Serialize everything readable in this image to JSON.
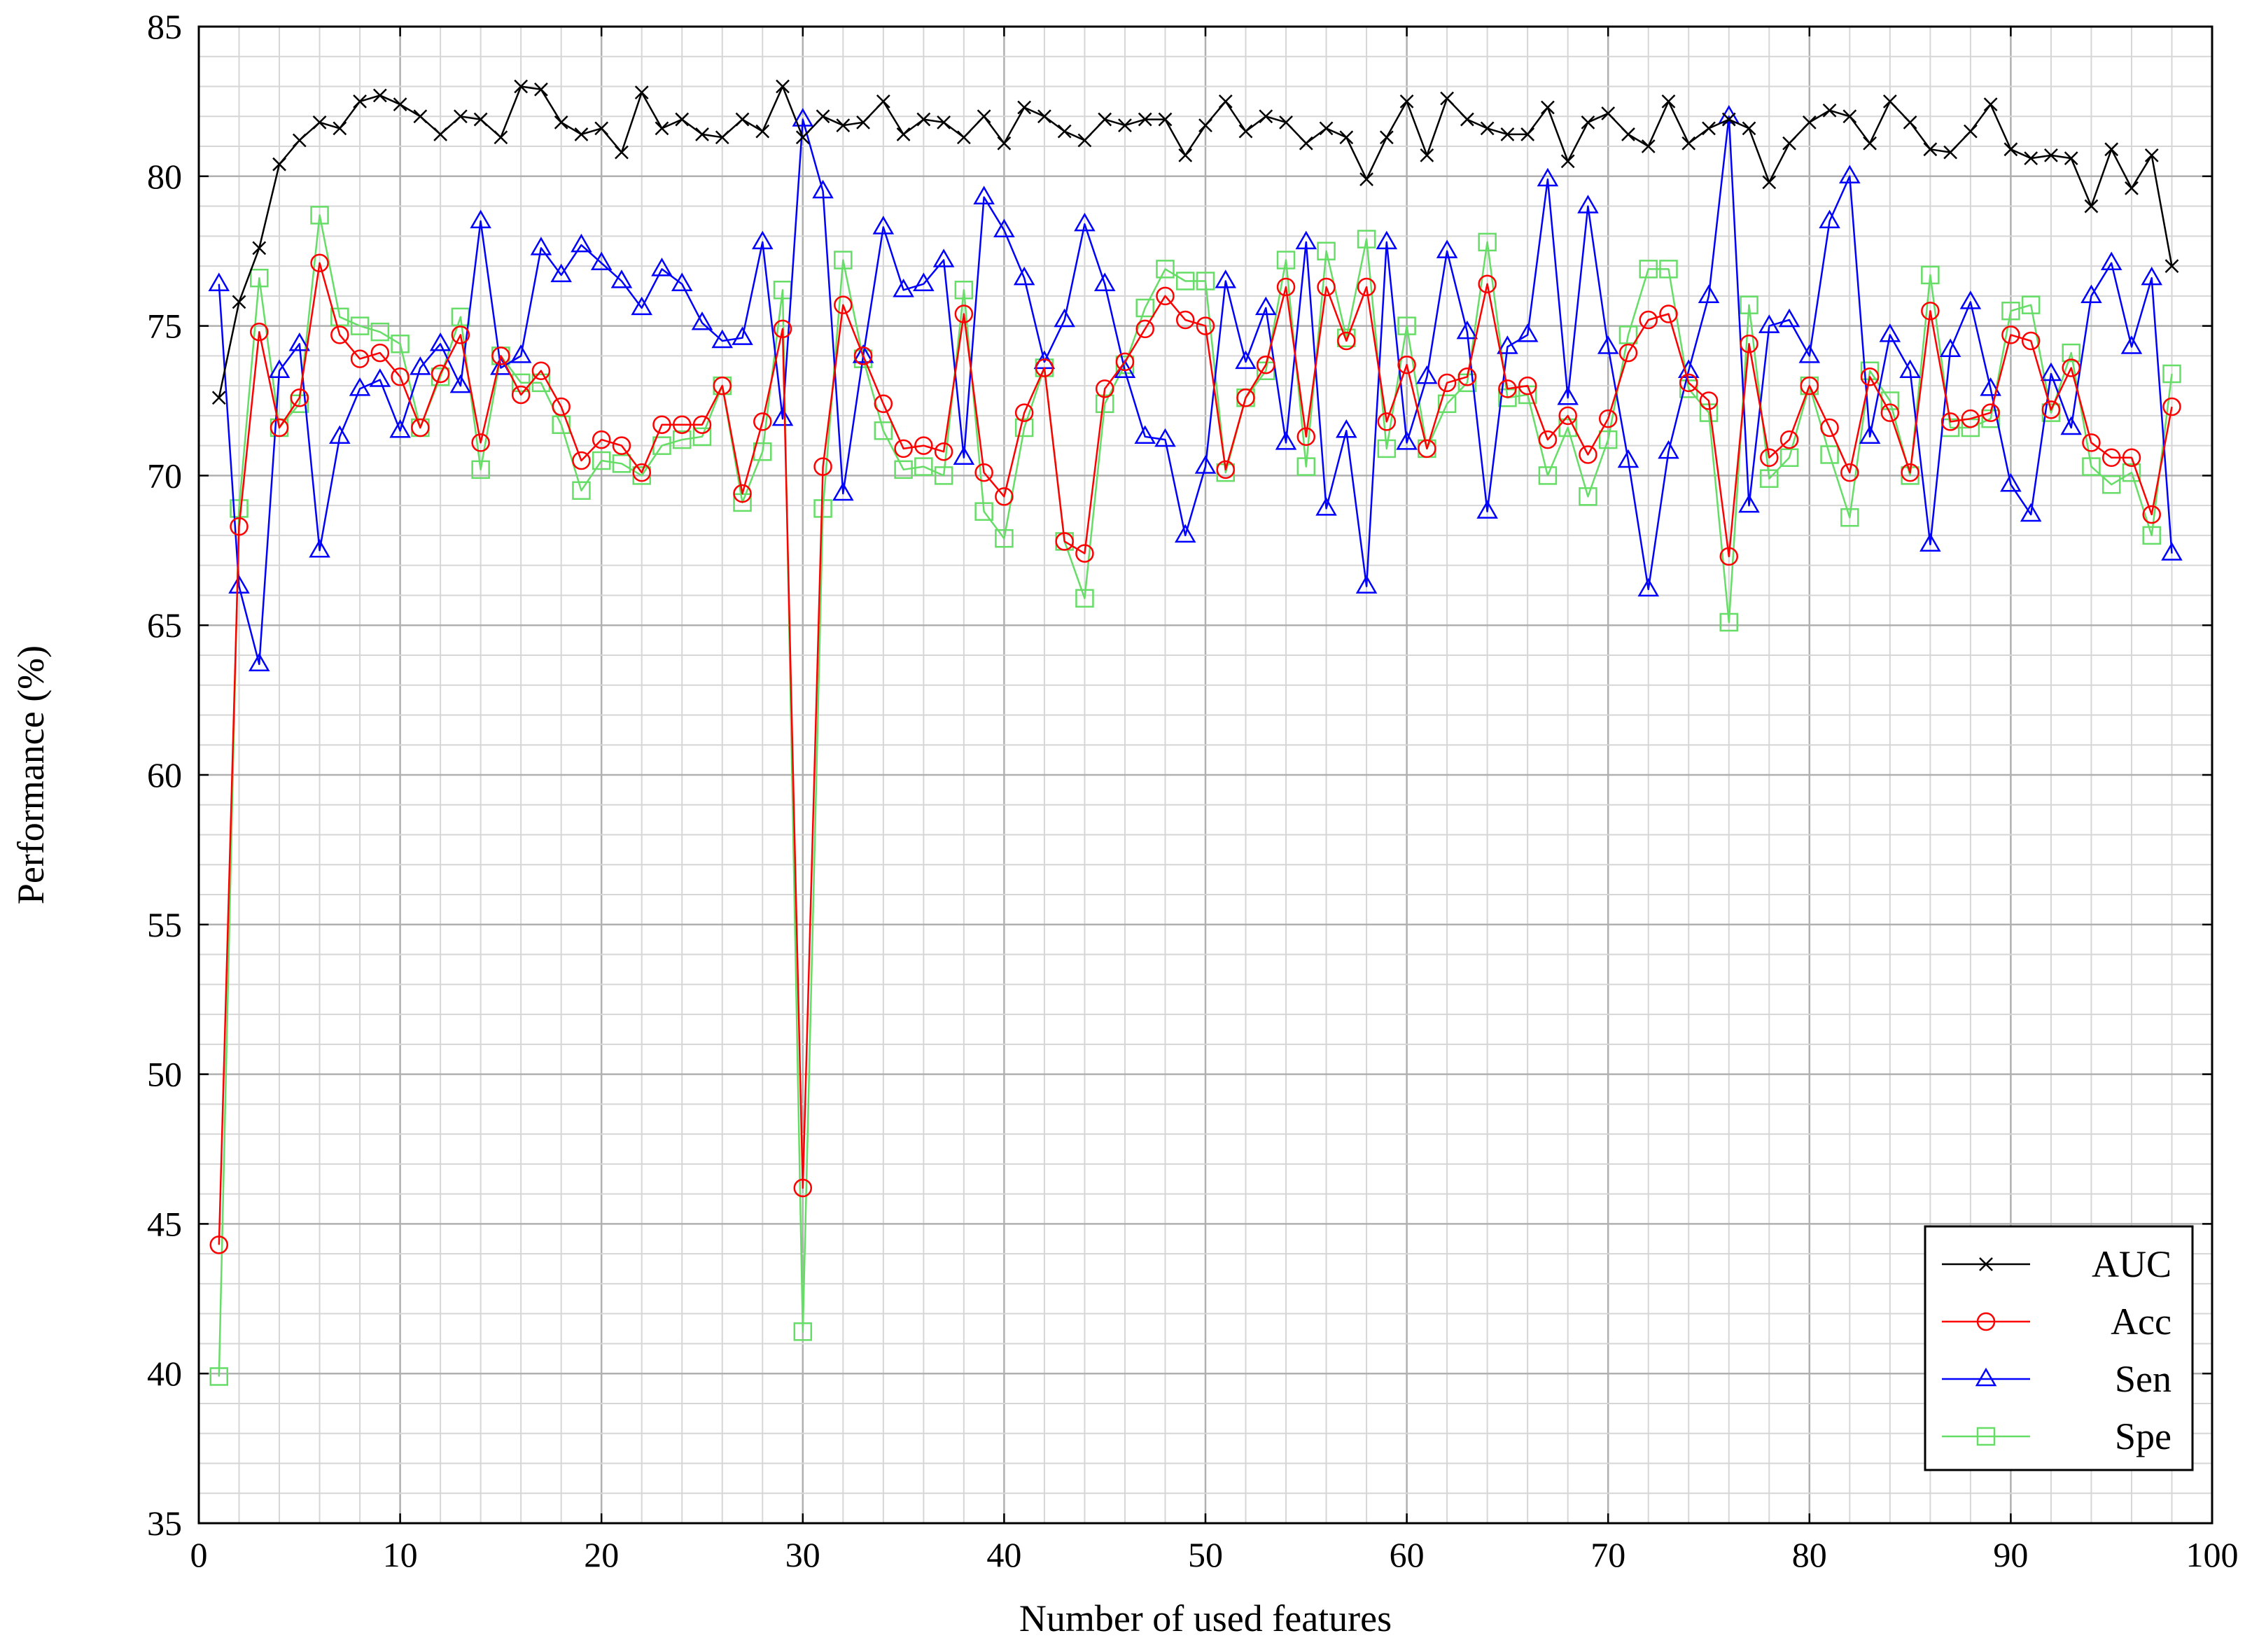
{
  "chart_data": {
    "type": "line",
    "title": "",
    "xlabel": "Number of used features",
    "ylabel": "Performance (%)",
    "xlim": [
      0,
      100
    ],
    "ylim": [
      35,
      85
    ],
    "x_ticks": [
      0,
      10,
      20,
      30,
      40,
      50,
      60,
      70,
      80,
      90,
      100
    ],
    "y_ticks": [
      35,
      40,
      45,
      50,
      55,
      60,
      65,
      70,
      75,
      80,
      85
    ],
    "grid": true,
    "legend_position": "bottom-right",
    "x": [
      1,
      2,
      3,
      4,
      5,
      6,
      7,
      8,
      9,
      10,
      11,
      12,
      13,
      14,
      15,
      16,
      17,
      18,
      19,
      20,
      21,
      22,
      23,
      24,
      25,
      26,
      27,
      28,
      29,
      30,
      31,
      32,
      33,
      34,
      35,
      36,
      37,
      38,
      39,
      40,
      41,
      42,
      43,
      44,
      45,
      46,
      47,
      48,
      49,
      50,
      51,
      52,
      53,
      54,
      55,
      56,
      57,
      58,
      59,
      60,
      61,
      62,
      63,
      64,
      65,
      66,
      67,
      68,
      69,
      70,
      71,
      72,
      73,
      74,
      75,
      76,
      77,
      78,
      79,
      80,
      81,
      82,
      83,
      84,
      85,
      86,
      87,
      88,
      89,
      90,
      91,
      92,
      93,
      94,
      95,
      96,
      97,
      98
    ],
    "series": [
      {
        "name": "AUC",
        "color": "#000000",
        "marker": "x",
        "values": [
          72.6,
          75.8,
          77.6,
          80.4,
          81.2,
          81.8,
          81.6,
          82.5,
          82.7,
          82.4,
          82.0,
          81.4,
          82.0,
          81.9,
          81.3,
          83.0,
          82.9,
          81.8,
          81.4,
          81.6,
          80.8,
          82.8,
          81.6,
          81.9,
          81.4,
          81.3,
          81.9,
          81.5,
          83.0,
          81.3,
          82.0,
          81.7,
          81.8,
          82.5,
          81.4,
          81.9,
          81.8,
          81.3,
          82.0,
          81.1,
          82.3,
          82.0,
          81.5,
          81.2,
          81.9,
          81.7,
          81.9,
          81.9,
          80.7,
          81.7,
          82.5,
          81.5,
          82.0,
          81.8,
          81.1,
          81.6,
          81.3,
          79.9,
          81.3,
          82.5,
          80.7,
          82.6,
          81.9,
          81.6,
          81.4,
          81.4,
          82.3,
          80.5,
          81.8,
          82.1,
          81.4,
          81.0,
          82.5,
          81.1,
          81.6,
          81.9,
          81.6,
          79.8,
          81.1,
          81.8,
          82.2,
          82.0,
          81.1,
          82.5,
          81.8,
          80.9,
          80.8,
          81.5,
          82.4,
          80.9,
          80.6,
          80.7,
          80.6,
          79.0,
          80.9,
          79.6,
          80.7,
          77.0
        ]
      },
      {
        "name": "Acc",
        "color": "#ff0000",
        "marker": "circle",
        "values": [
          44.3,
          68.3,
          74.8,
          71.6,
          72.6,
          77.1,
          74.7,
          73.9,
          74.1,
          73.3,
          71.6,
          73.4,
          74.7,
          71.1,
          74.0,
          72.7,
          73.5,
          72.3,
          70.5,
          71.2,
          71.0,
          70.1,
          71.7,
          71.7,
          71.7,
          73.0,
          69.4,
          71.8,
          74.9,
          46.2,
          70.3,
          75.7,
          74.0,
          72.4,
          70.9,
          71.0,
          70.8,
          75.4,
          70.1,
          69.3,
          72.1,
          73.6,
          67.8,
          67.4,
          72.9,
          73.8,
          74.9,
          76.0,
          75.2,
          75.0,
          70.2,
          72.6,
          73.7,
          76.3,
          71.3,
          76.3,
          74.5,
          76.3,
          71.8,
          73.7,
          70.9,
          73.1,
          73.3,
          76.4,
          72.9,
          73.0,
          71.2,
          72.0,
          70.7,
          71.9,
          74.1,
          75.2,
          75.4,
          73.1,
          72.5,
          67.3,
          74.4,
          70.6,
          71.2,
          73.0,
          71.6,
          70.1,
          73.3,
          72.1,
          70.1,
          75.5,
          71.8,
          71.9,
          72.1,
          74.7,
          74.5,
          72.2,
          73.6,
          71.1,
          70.6,
          70.6,
          68.7,
          72.3
        ]
      },
      {
        "name": "Sen",
        "color": "#0000ff",
        "marker": "triangle",
        "values": [
          76.4,
          66.3,
          63.7,
          73.5,
          74.4,
          67.5,
          71.3,
          72.9,
          73.2,
          71.5,
          73.6,
          74.4,
          73.0,
          78.5,
          73.6,
          74.0,
          77.6,
          76.7,
          77.7,
          77.1,
          76.5,
          75.6,
          76.9,
          76.4,
          75.1,
          74.5,
          74.6,
          77.8,
          71.9,
          81.9,
          79.5,
          69.4,
          74.0,
          78.3,
          76.2,
          76.4,
          77.2,
          70.6,
          79.3,
          78.2,
          76.6,
          73.8,
          75.2,
          78.4,
          76.4,
          73.5,
          71.3,
          71.2,
          68.0,
          70.3,
          76.5,
          73.8,
          75.6,
          71.1,
          77.8,
          68.9,
          71.5,
          66.3,
          77.8,
          71.1,
          73.3,
          77.5,
          74.8,
          68.8,
          74.3,
          74.7,
          79.9,
          72.6,
          79.0,
          74.3,
          70.5,
          66.2,
          70.8,
          73.5,
          76.0,
          82.0,
          69.0,
          75.0,
          75.2,
          74.0,
          78.5,
          80.0,
          71.3,
          74.7,
          73.5,
          67.7,
          74.2,
          75.8,
          72.9,
          69.7,
          68.7,
          73.4,
          71.6,
          76.0,
          77.1,
          74.3,
          76.6,
          67.4
        ]
      },
      {
        "name": "Spe",
        "color": "#66dd66",
        "marker": "square",
        "values": [
          39.9,
          68.9,
          76.6,
          71.6,
          72.4,
          78.7,
          75.3,
          75.0,
          74.8,
          74.4,
          71.6,
          73.3,
          75.3,
          70.2,
          74.0,
          73.1,
          73.1,
          71.7,
          69.5,
          70.5,
          70.4,
          70.0,
          71.0,
          71.2,
          71.3,
          73.0,
          69.1,
          70.8,
          76.2,
          41.4,
          68.9,
          77.2,
          73.9,
          71.5,
          70.2,
          70.3,
          70.0,
          76.2,
          68.8,
          67.9,
          71.6,
          73.6,
          67.8,
          65.9,
          72.4,
          73.7,
          75.6,
          76.9,
          76.5,
          76.5,
          70.1,
          72.6,
          73.5,
          77.2,
          70.3,
          77.5,
          74.6,
          77.9,
          70.9,
          75.0,
          70.9,
          72.4,
          73.1,
          77.8,
          72.6,
          72.7,
          70.0,
          71.6,
          69.3,
          71.2,
          74.7,
          76.9,
          76.9,
          72.9,
          72.1,
          65.1,
          75.7,
          69.9,
          70.6,
          73.0,
          70.7,
          68.6,
          73.5,
          72.5,
          70.0,
          76.7,
          71.6,
          71.6,
          71.9,
          75.5,
          75.7,
          72.1,
          74.1,
          70.3,
          69.7,
          70.1,
          68.0,
          73.4
        ]
      }
    ]
  }
}
